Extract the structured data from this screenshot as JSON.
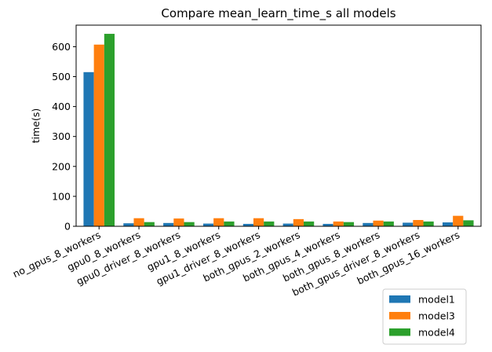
{
  "chart_data": {
    "type": "bar",
    "title": "Compare mean_learn_time_s all models",
    "xlabel": "",
    "ylabel": "time(s)",
    "ylim": [
      0,
      672
    ],
    "yticks": [
      0,
      100,
      200,
      300,
      400,
      500,
      600
    ],
    "grid": false,
    "legend_position": "lower-right-outside",
    "categories": [
      "no_gpus_8_workers",
      "gpu0_8_workers",
      "gpu0_driver_8_workers",
      "gpu1_8_workers",
      "gpu1_driver_8_workers",
      "both_gpus_2_workers",
      "both_gpus_4_workers",
      "both_gpus_8_workers",
      "both_gpus_driver_8_workers",
      "both_gpus_16_workers"
    ],
    "series": [
      {
        "name": "model1",
        "color": "#1f77b4",
        "values": [
          515,
          10,
          11,
          9,
          8,
          9,
          8,
          11,
          12,
          13
        ]
      },
      {
        "name": "model3",
        "color": "#ff7f0e",
        "values": [
          607,
          27,
          26,
          27,
          27,
          24,
          16,
          19,
          21,
          35
        ]
      },
      {
        "name": "model4",
        "color": "#2ca02c",
        "values": [
          643,
          14,
          14,
          16,
          16,
          16,
          14,
          16,
          16,
          20
        ]
      }
    ]
  }
}
